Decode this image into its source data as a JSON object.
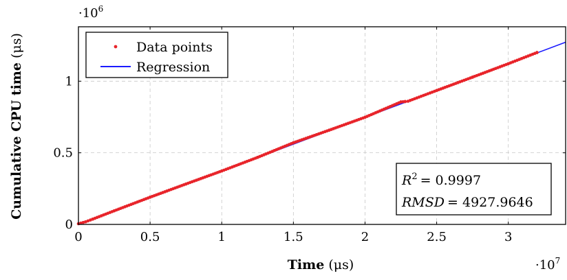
{
  "chart_data": {
    "type": "scatter",
    "xlabel_bold": "Time",
    "xlabel_unit": "(μs)",
    "ylabel_bold": "Cumulative CPU time",
    "ylabel_unit": "(μs)",
    "x_multiplier": "·10",
    "x_multiplier_exp": "7",
    "y_multiplier": "·10",
    "y_multiplier_exp": "6",
    "xlim": [
      0,
      34000000
    ],
    "ylim": [
      0,
      1380000
    ],
    "x_ticks": [
      0,
      5000000,
      10000000,
      15000000,
      20000000,
      25000000,
      30000000
    ],
    "x_tick_labels": [
      "0",
      "0.5",
      "1",
      "1.5",
      "2",
      "2.5",
      "3"
    ],
    "y_ticks": [
      0,
      500000,
      1000000
    ],
    "y_tick_labels": [
      "0",
      "0.5",
      "1"
    ],
    "grid": true,
    "legend_position": "top-left",
    "series": [
      {
        "name": "Data points",
        "kind": "scatter",
        "color": "#e8242a",
        "x": [
          0,
          500000,
          1000000,
          2500000,
          5000000,
          7500000,
          10000000,
          12500000,
          15000000,
          17500000,
          20000000,
          22500000,
          22800000,
          23000000,
          25000000,
          27500000,
          30000000,
          32000000
        ],
        "y": [
          5000,
          18000,
          37000,
          95000,
          190000,
          282000,
          373000,
          468000,
          570000,
          658000,
          748000,
          855000,
          858000,
          860000,
          935000,
          1028000,
          1122000,
          1200000
        ]
      },
      {
        "name": "Regression",
        "kind": "line",
        "color": "#1a1aff",
        "x": [
          0,
          34000000
        ],
        "y": [
          -2000,
          1272000
        ]
      }
    ],
    "annotation_r2_label": "R",
    "annotation_r2_exp": "2",
    "annotation_r2_value": "= 0.9997",
    "annotation_rmsd_label": "RMSD",
    "annotation_rmsd_value": "= 4927.9646"
  }
}
